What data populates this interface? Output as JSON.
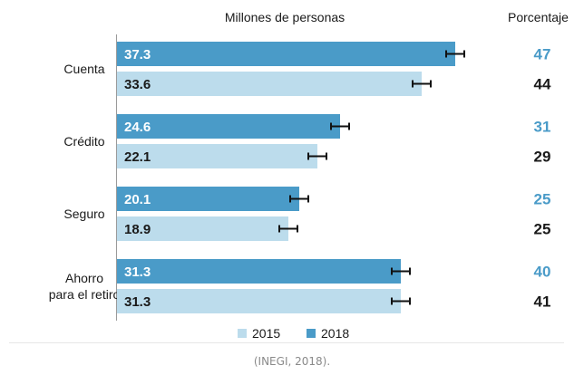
{
  "chart_data": {
    "type": "bar",
    "orientation": "horizontal",
    "header_left": "Millones de personas",
    "header_right": "Porcentaje",
    "categories": [
      [
        "Cuenta"
      ],
      [
        "Crédito"
      ],
      [
        "Seguro"
      ],
      [
        "Ahorro",
        "para el retiro"
      ]
    ],
    "series": [
      {
        "name": "2018",
        "color": "#4a9bc8",
        "values": [
          37.3,
          24.6,
          20.1,
          31.3
        ],
        "error": [
          1.0,
          1.0,
          1.0,
          1.0
        ],
        "percent": [
          47,
          31,
          25,
          40
        ],
        "label_color": "#ffffff",
        "pct_color": "#4a9bc8"
      },
      {
        "name": "2015",
        "color": "#bcdcec",
        "values": [
          33.6,
          22.1,
          18.9,
          31.3
        ],
        "error": [
          1.0,
          1.0,
          1.0,
          1.0
        ],
        "percent": [
          44,
          29,
          25,
          41
        ],
        "label_color": "#1a1a1a",
        "pct_color": "#1a1a1a"
      }
    ],
    "legend": [
      "2015",
      "2018"
    ],
    "xlim": [
      0,
      46.5
    ]
  },
  "source_text": "(INEGI, 2018)."
}
